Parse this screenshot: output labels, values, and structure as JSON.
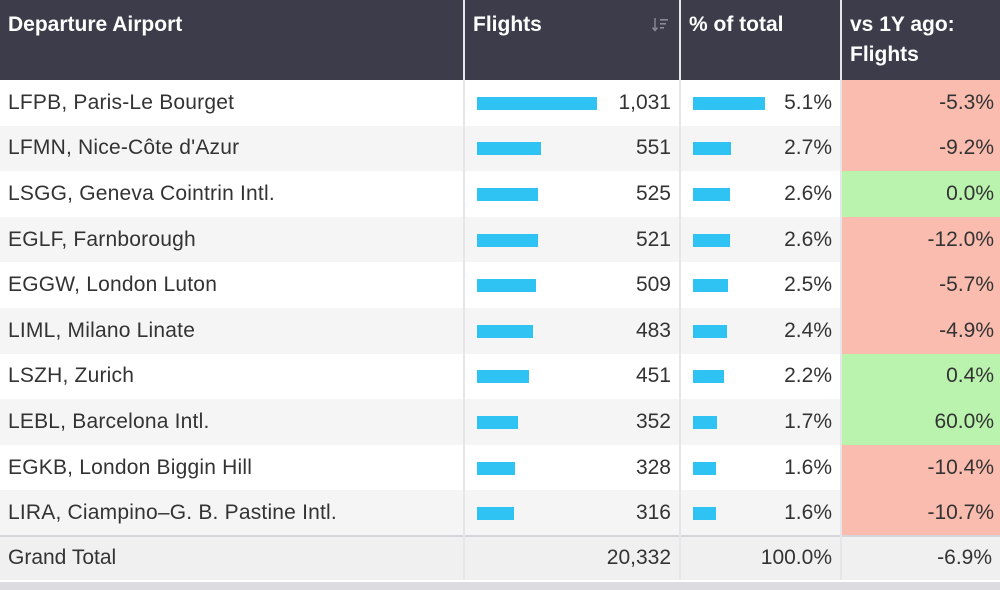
{
  "table": {
    "headers": {
      "airport": "Departure Airport",
      "flights": "Flights",
      "pct": "% of total",
      "vs1y": "vs 1Y ago: Flights"
    },
    "rows": [
      {
        "airport": "LFPB, Paris-Le Bourget",
        "flights": "1,031",
        "flights_value": 1031,
        "pct": "5.1%",
        "pct_value": 5.1,
        "vs1y": "-5.3%",
        "vs1y_sign": "neg"
      },
      {
        "airport": "LFMN, Nice-Côte d'Azur",
        "flights": "551",
        "flights_value": 551,
        "pct": "2.7%",
        "pct_value": 2.7,
        "vs1y": "-9.2%",
        "vs1y_sign": "neg"
      },
      {
        "airport": "LSGG, Geneva Cointrin Intl.",
        "flights": "525",
        "flights_value": 525,
        "pct": "2.6%",
        "pct_value": 2.6,
        "vs1y": "0.0%",
        "vs1y_sign": "pos"
      },
      {
        "airport": "EGLF, Farnborough",
        "flights": "521",
        "flights_value": 521,
        "pct": "2.6%",
        "pct_value": 2.6,
        "vs1y": "-12.0%",
        "vs1y_sign": "neg"
      },
      {
        "airport": "EGGW, London Luton",
        "flights": "509",
        "flights_value": 509,
        "pct": "2.5%",
        "pct_value": 2.5,
        "vs1y": "-5.7%",
        "vs1y_sign": "neg"
      },
      {
        "airport": "LIML, Milano Linate",
        "flights": "483",
        "flights_value": 483,
        "pct": "2.4%",
        "pct_value": 2.4,
        "vs1y": "-4.9%",
        "vs1y_sign": "neg"
      },
      {
        "airport": "LSZH, Zurich",
        "flights": "451",
        "flights_value": 451,
        "pct": "2.2%",
        "pct_value": 2.2,
        "vs1y": "0.4%",
        "vs1y_sign": "pos"
      },
      {
        "airport": "LEBL, Barcelona Intl.",
        "flights": "352",
        "flights_value": 352,
        "pct": "1.7%",
        "pct_value": 1.7,
        "vs1y": "60.0%",
        "vs1y_sign": "pos"
      },
      {
        "airport": "EGKB, London Biggin Hill",
        "flights": "328",
        "flights_value": 328,
        "pct": "1.6%",
        "pct_value": 1.6,
        "vs1y": "-10.4%",
        "vs1y_sign": "neg"
      },
      {
        "airport": "LIRA, Ciampino–G. B. Pastine Intl.",
        "flights": "316",
        "flights_value": 316,
        "pct": "1.6%",
        "pct_value": 1.6,
        "vs1y": "-10.7%",
        "vs1y_sign": "neg"
      }
    ],
    "total": {
      "label": "Grand Total",
      "flights": "20,332",
      "pct": "100.0%",
      "vs1y": "-6.9%"
    }
  },
  "colors": {
    "header_bg": "#3c3c4b",
    "bar": "#2fc3f4",
    "negative_bg": "#f9bcae",
    "positive_bg": "#b9f3ae"
  },
  "icons": {
    "sort": "sort-descending-icon"
  }
}
